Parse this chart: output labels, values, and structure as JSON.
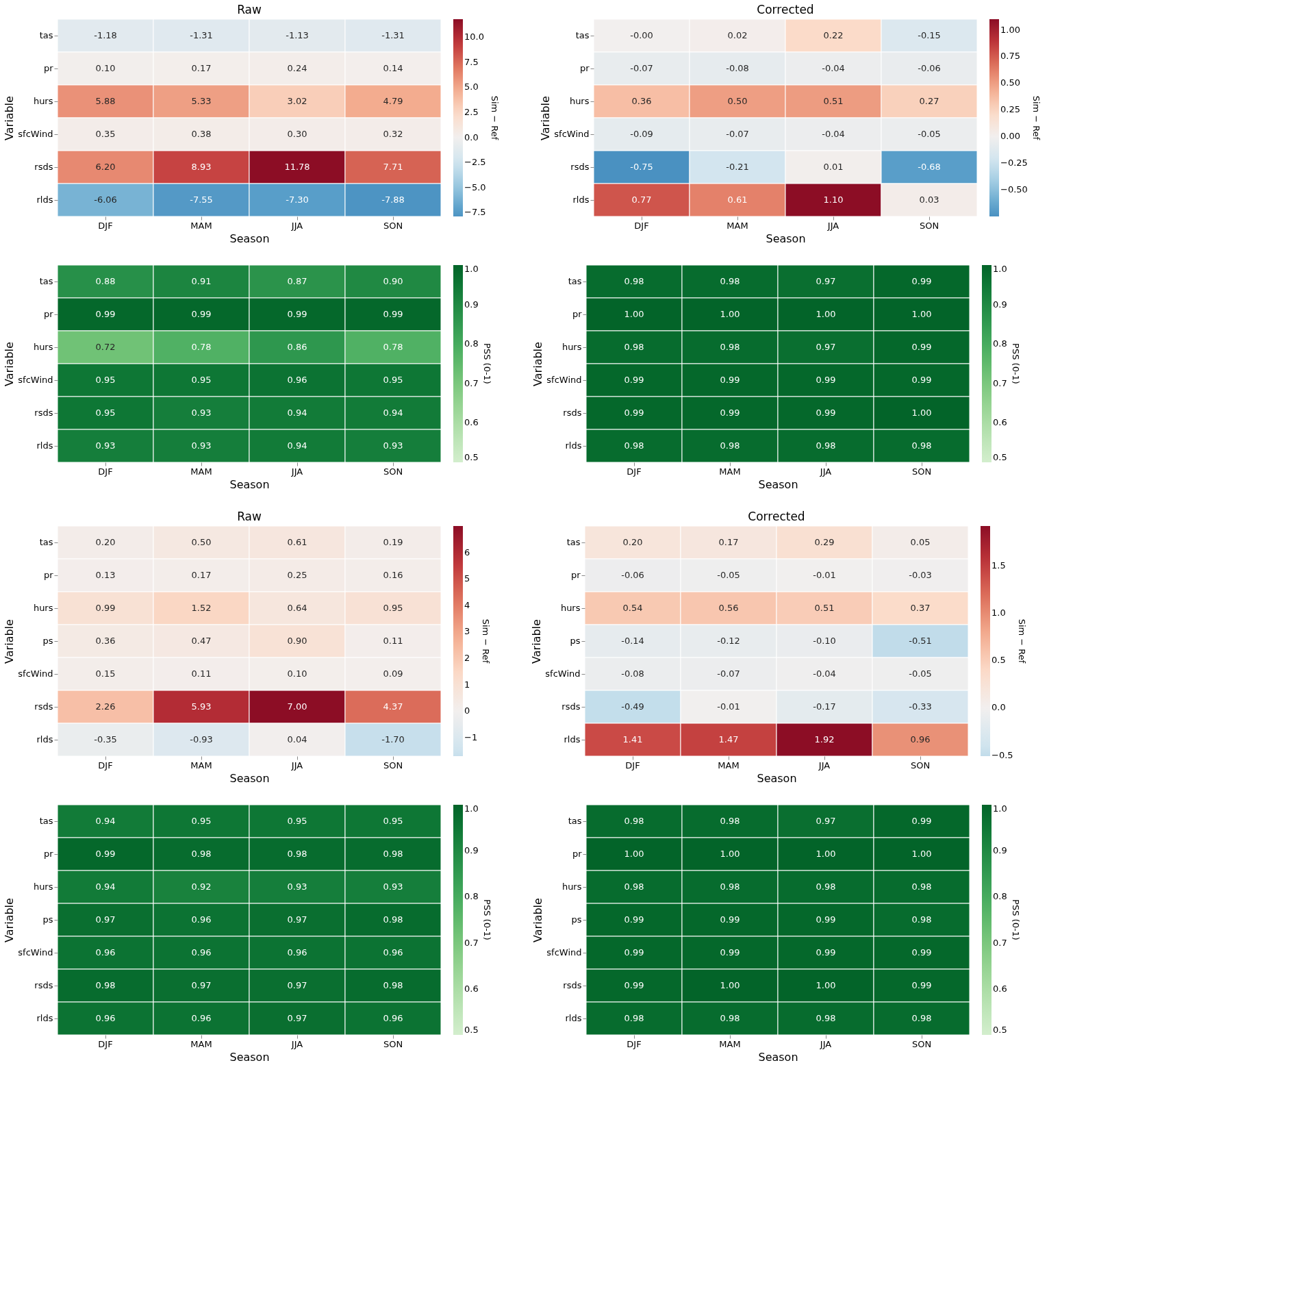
{
  "chart_data": [
    {
      "type": "heatmap",
      "title": "Raw",
      "xlabel": "Season",
      "ylabel": "Variable",
      "clabel": "Sim − Ref",
      "categories": [
        "DJF",
        "MAM",
        "JJA",
        "SON"
      ],
      "y_categories": [
        "tas",
        "pr",
        "hurs",
        "sfcWind",
        "rsds",
        "rlds"
      ],
      "cells": [
        [
          -1.18,
          -1.31,
          -1.13,
          -1.31
        ],
        [
          0.1,
          0.17,
          0.24,
          0.14
        ],
        [
          5.88,
          5.33,
          3.02,
          4.79
        ],
        [
          0.35,
          0.38,
          0.3,
          0.32
        ],
        [
          6.2,
          8.93,
          11.78,
          7.71
        ],
        [
          -6.06,
          -7.55,
          -7.3,
          -7.88
        ]
      ],
      "cell_labels": [
        [
          "-1.18",
          "-1.31",
          "-1.13",
          "-1.31"
        ],
        [
          "0.10",
          "0.17",
          "0.24",
          "0.14"
        ],
        [
          "5.88",
          "5.33",
          "3.02",
          "4.79"
        ],
        [
          "0.35",
          "0.38",
          "0.30",
          "0.32"
        ],
        [
          "6.20",
          "8.93",
          "11.78",
          "7.71"
        ],
        [
          "-6.06",
          "-7.55",
          "-7.30",
          "-7.88"
        ]
      ],
      "clim": [
        -7.88,
        11.78
      ],
      "cticks": [
        {
          "value": -7.5,
          "label": "−7.5"
        },
        {
          "value": -5,
          "label": "−5.0"
        },
        {
          "value": -2.5,
          "label": "−2.5"
        },
        {
          "value": 0,
          "label": "0.0"
        },
        {
          "value": 2.5,
          "label": "2.5"
        },
        {
          "value": 5,
          "label": "5.0"
        },
        {
          "value": 7.5,
          "label": "7.5"
        },
        {
          "value": 10,
          "label": "10.0"
        }
      ]
    },
    {
      "type": "heatmap",
      "title": "Corrected",
      "xlabel": "Season",
      "ylabel": "Variable",
      "clabel": "Sim − Ref",
      "categories": [
        "DJF",
        "MAM",
        "JJA",
        "SON"
      ],
      "y_categories": [
        "tas",
        "pr",
        "hurs",
        "sfcWind",
        "rsds",
        "rlds"
      ],
      "cells": [
        [
          -0.0,
          0.02,
          0.22,
          -0.15
        ],
        [
          -0.07,
          -0.08,
          -0.04,
          -0.06
        ],
        [
          0.36,
          0.5,
          0.51,
          0.27
        ],
        [
          -0.09,
          -0.07,
          -0.04,
          -0.05
        ],
        [
          -0.75,
          -0.21,
          0.01,
          -0.68
        ],
        [
          0.77,
          0.61,
          1.1,
          0.03
        ]
      ],
      "cell_labels": [
        [
          "-0.00",
          "0.02",
          "0.22",
          "-0.15"
        ],
        [
          "-0.07",
          "-0.08",
          "-0.04",
          "-0.06"
        ],
        [
          "0.36",
          "0.50",
          "0.51",
          "0.27"
        ],
        [
          "-0.09",
          "-0.07",
          "-0.04",
          "-0.05"
        ],
        [
          "-0.75",
          "-0.21",
          "0.01",
          "-0.68"
        ],
        [
          "0.77",
          "0.61",
          "1.10",
          "0.03"
        ]
      ],
      "clim": [
        -0.75,
        1.1
      ],
      "cticks": [
        {
          "value": -0.5,
          "label": "−0.50"
        },
        {
          "value": -0.25,
          "label": "−0.25"
        },
        {
          "value": 0,
          "label": "0.00"
        },
        {
          "value": 0.25,
          "label": "0.25"
        },
        {
          "value": 0.5,
          "label": "0.50"
        },
        {
          "value": 0.75,
          "label": "0.75"
        },
        {
          "value": 1,
          "label": "1.00"
        }
      ]
    },
    {
      "type": "heatmap",
      "xlabel": "Season",
      "ylabel": "Variable",
      "clabel": "PSS (0-1)",
      "categories": [
        "DJF",
        "MAM",
        "JJA",
        "SON"
      ],
      "y_categories": [
        "tas",
        "pr",
        "hurs",
        "sfcWind",
        "rsds",
        "rlds"
      ],
      "cells": [
        [
          0.88,
          0.91,
          0.87,
          0.9
        ],
        [
          0.99,
          0.99,
          0.99,
          0.99
        ],
        [
          0.72,
          0.78,
          0.86,
          0.78
        ],
        [
          0.95,
          0.95,
          0.96,
          0.95
        ],
        [
          0.95,
          0.93,
          0.94,
          0.94
        ],
        [
          0.93,
          0.93,
          0.94,
          0.93
        ]
      ],
      "cell_labels": [
        [
          "0.88",
          "0.91",
          "0.87",
          "0.90"
        ],
        [
          "0.99",
          "0.99",
          "0.99",
          "0.99"
        ],
        [
          "0.72",
          "0.78",
          "0.86",
          "0.78"
        ],
        [
          "0.95",
          "0.95",
          "0.96",
          "0.95"
        ],
        [
          "0.95",
          "0.93",
          "0.94",
          "0.94"
        ],
        [
          "0.93",
          "0.93",
          "0.94",
          "0.93"
        ]
      ],
      "clim": [
        0.5,
        1.0
      ],
      "cticks": [
        0.5,
        0.6,
        0.7,
        0.8,
        0.9,
        {
          "value": 1,
          "label": "1.0"
        }
      ]
    },
    {
      "type": "heatmap",
      "xlabel": "Season",
      "ylabel": "Variable",
      "clabel": "PSS (0-1)",
      "categories": [
        "DJF",
        "MAM",
        "JJA",
        "SON"
      ],
      "y_categories": [
        "tas",
        "pr",
        "hurs",
        "sfcWind",
        "rsds",
        "rlds"
      ],
      "cells": [
        [
          0.98,
          0.98,
          0.97,
          0.99
        ],
        [
          1.0,
          1.0,
          1.0,
          1.0
        ],
        [
          0.98,
          0.98,
          0.97,
          0.99
        ],
        [
          0.99,
          0.99,
          0.99,
          0.99
        ],
        [
          0.99,
          0.99,
          0.99,
          1.0
        ],
        [
          0.98,
          0.98,
          0.98,
          0.98
        ]
      ],
      "cell_labels": [
        [
          "0.98",
          "0.98",
          "0.97",
          "0.99"
        ],
        [
          "1.00",
          "1.00",
          "1.00",
          "1.00"
        ],
        [
          "0.98",
          "0.98",
          "0.97",
          "0.99"
        ],
        [
          "0.99",
          "0.99",
          "0.99",
          "0.99"
        ],
        [
          "0.99",
          "0.99",
          "0.99",
          "1.00"
        ],
        [
          "0.98",
          "0.98",
          "0.98",
          "0.98"
        ]
      ],
      "clim": [
        0.5,
        1.0
      ],
      "cticks": [
        0.5,
        0.6,
        0.7,
        0.8,
        0.9,
        {
          "value": 1,
          "label": "1.0"
        }
      ]
    },
    {
      "type": "heatmap",
      "title": "Raw",
      "xlabel": "Season",
      "ylabel": "Variable",
      "clabel": "Sim − Ref",
      "categories": [
        "DJF",
        "MAM",
        "JJA",
        "SON"
      ],
      "y_categories": [
        "tas",
        "pr",
        "hurs",
        "ps",
        "sfcWind",
        "rsds",
        "rlds"
      ],
      "cells": [
        [
          0.2,
          0.5,
          0.61,
          0.19
        ],
        [
          0.13,
          0.17,
          0.25,
          0.16
        ],
        [
          0.99,
          1.52,
          0.64,
          0.95
        ],
        [
          0.36,
          0.47,
          0.9,
          0.11
        ],
        [
          0.15,
          0.11,
          0.1,
          0.09
        ],
        [
          2.26,
          5.93,
          7.0,
          4.37
        ],
        [
          -0.35,
          -0.93,
          0.04,
          -1.7
        ]
      ],
      "cell_labels": [
        [
          "0.20",
          "0.50",
          "0.61",
          "0.19"
        ],
        [
          "0.13",
          "0.17",
          "0.25",
          "0.16"
        ],
        [
          "0.99",
          "1.52",
          "0.64",
          "0.95"
        ],
        [
          "0.36",
          "0.47",
          "0.90",
          "0.11"
        ],
        [
          "0.15",
          "0.11",
          "0.10",
          "0.09"
        ],
        [
          "2.26",
          "5.93",
          "7.00",
          "4.37"
        ],
        [
          "-0.35",
          "-0.93",
          "0.04",
          "-1.70"
        ]
      ],
      "clim": [
        -1.7,
        7.0
      ],
      "cticks": [
        {
          "value": -1,
          "label": "−1"
        },
        0,
        1,
        2,
        3,
        4,
        5,
        6
      ]
    },
    {
      "type": "heatmap",
      "title": "Corrected",
      "xlabel": "Season",
      "ylabel": "Variable",
      "clabel": "Sim − Ref",
      "categories": [
        "DJF",
        "MAM",
        "JJA",
        "SON"
      ],
      "y_categories": [
        "tas",
        "pr",
        "hurs",
        "ps",
        "sfcWind",
        "rsds",
        "rlds"
      ],
      "cells": [
        [
          0.2,
          0.17,
          0.29,
          0.05
        ],
        [
          -0.06,
          -0.05,
          -0.01,
          -0.03
        ],
        [
          0.54,
          0.56,
          0.51,
          0.37
        ],
        [
          -0.14,
          -0.12,
          -0.1,
          -0.51
        ],
        [
          -0.08,
          -0.07,
          -0.04,
          -0.05
        ],
        [
          -0.49,
          -0.01,
          -0.17,
          -0.33
        ],
        [
          1.41,
          1.47,
          1.92,
          0.96
        ]
      ],
      "cell_labels": [
        [
          "0.20",
          "0.17",
          "0.29",
          "0.05"
        ],
        [
          "-0.06",
          "-0.05",
          "-0.01",
          "-0.03"
        ],
        [
          "0.54",
          "0.56",
          "0.51",
          "0.37"
        ],
        [
          "-0.14",
          "-0.12",
          "-0.10",
          "-0.51"
        ],
        [
          "-0.08",
          "-0.07",
          "-0.04",
          "-0.05"
        ],
        [
          "-0.49",
          "-0.01",
          "-0.17",
          "-0.33"
        ],
        [
          "1.41",
          "1.47",
          "1.92",
          "0.96"
        ]
      ],
      "clim": [
        -0.51,
        1.92
      ],
      "cticks": [
        {
          "value": -0.5,
          "label": "−0.5"
        },
        {
          "value": 0,
          "label": "0.0"
        },
        0.5,
        {
          "value": 1,
          "label": "1.0"
        },
        1.5
      ]
    },
    {
      "type": "heatmap",
      "xlabel": "Season",
      "ylabel": "Variable",
      "clabel": "PSS (0-1)",
      "categories": [
        "DJF",
        "MAM",
        "JJA",
        "SON"
      ],
      "y_categories": [
        "tas",
        "pr",
        "hurs",
        "ps",
        "sfcWind",
        "rsds",
        "rlds"
      ],
      "cells": [
        [
          0.94,
          0.95,
          0.95,
          0.95
        ],
        [
          0.99,
          0.98,
          0.98,
          0.98
        ],
        [
          0.94,
          0.92,
          0.93,
          0.93
        ],
        [
          0.97,
          0.96,
          0.97,
          0.98
        ],
        [
          0.96,
          0.96,
          0.96,
          0.96
        ],
        [
          0.98,
          0.97,
          0.97,
          0.98
        ],
        [
          0.96,
          0.96,
          0.97,
          0.96
        ]
      ],
      "cell_labels": [
        [
          "0.94",
          "0.95",
          "0.95",
          "0.95"
        ],
        [
          "0.99",
          "0.98",
          "0.98",
          "0.98"
        ],
        [
          "0.94",
          "0.92",
          "0.93",
          "0.93"
        ],
        [
          "0.97",
          "0.96",
          "0.97",
          "0.98"
        ],
        [
          "0.96",
          "0.96",
          "0.96",
          "0.96"
        ],
        [
          "0.98",
          "0.97",
          "0.97",
          "0.98"
        ],
        [
          "0.96",
          "0.96",
          "0.97",
          "0.96"
        ]
      ],
      "clim": [
        0.5,
        1.0
      ],
      "cticks": [
        0.5,
        0.6,
        0.7,
        0.8,
        0.9,
        {
          "value": 1,
          "label": "1.0"
        }
      ]
    },
    {
      "type": "heatmap",
      "xlabel": "Season",
      "ylabel": "Variable",
      "clabel": "PSS (0-1)",
      "categories": [
        "DJF",
        "MAM",
        "JJA",
        "SON"
      ],
      "y_categories": [
        "tas",
        "pr",
        "hurs",
        "ps",
        "sfcWind",
        "rsds",
        "rlds"
      ],
      "cells": [
        [
          0.98,
          0.98,
          0.97,
          0.99
        ],
        [
          1.0,
          1.0,
          1.0,
          1.0
        ],
        [
          0.98,
          0.98,
          0.98,
          0.98
        ],
        [
          0.99,
          0.99,
          0.99,
          0.98
        ],
        [
          0.99,
          0.99,
          0.99,
          0.99
        ],
        [
          0.99,
          1.0,
          1.0,
          0.99
        ],
        [
          0.98,
          0.98,
          0.98,
          0.98
        ]
      ],
      "cell_labels": [
        [
          "0.98",
          "0.98",
          "0.97",
          "0.99"
        ],
        [
          "1.00",
          "1.00",
          "1.00",
          "1.00"
        ],
        [
          "0.98",
          "0.98",
          "0.98",
          "0.98"
        ],
        [
          "0.99",
          "0.99",
          "0.99",
          "0.98"
        ],
        [
          "0.99",
          "0.99",
          "0.99",
          "0.99"
        ],
        [
          "0.99",
          "1.00",
          "1.00",
          "0.99"
        ],
        [
          "0.98",
          "0.98",
          "0.98",
          "0.98"
        ]
      ],
      "clim": [
        0.5,
        1.0
      ],
      "cticks": [
        0.5,
        0.6,
        0.7,
        0.8,
        0.9,
        {
          "value": 1,
          "label": "1.0"
        }
      ]
    }
  ]
}
